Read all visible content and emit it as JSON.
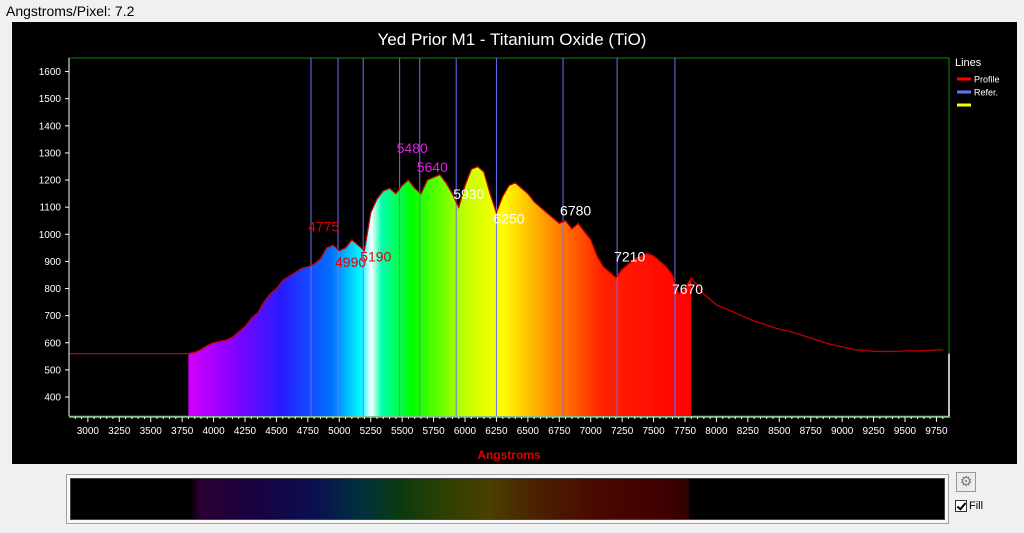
{
  "header": {
    "label": "Angstroms/Pixel: 7.2"
  },
  "controls": {
    "settings_icon": "gear-icon",
    "fill_label": "Fill",
    "fill_checked": true
  },
  "colors": {
    "profile": "#ff0000",
    "reference": "#6f6fff",
    "title": "#ffffff",
    "xlabel": "#e00000",
    "marker_magenta": "#e020e0",
    "marker_red": "#e00000",
    "marker_white": "#ffffff"
  },
  "chart_data": {
    "type": "area",
    "title": "Yed Prior M1 - Titanium Oxide (TiO)",
    "xlabel": "Angstroms",
    "ylabel": "",
    "xlim": [
      2850,
      9850
    ],
    "ylim": [
      330,
      1650
    ],
    "x_ticks": [
      3000,
      3250,
      3500,
      3750,
      4000,
      4250,
      4500,
      4750,
      5000,
      5250,
      5500,
      5750,
      6000,
      6250,
      6500,
      6750,
      7000,
      7250,
      7500,
      7750,
      8000,
      8250,
      8500,
      8750,
      9000,
      9250,
      9500,
      9750
    ],
    "y_ticks": [
      400,
      500,
      600,
      700,
      800,
      900,
      1000,
      1100,
      1200,
      1300,
      1400,
      1500,
      1600
    ],
    "fill_range": [
      3800,
      7800
    ],
    "legend": {
      "title": "Lines",
      "placement": "top-right",
      "entries": [
        {
          "name": "Profile",
          "color": "#ff0000"
        },
        {
          "name": "Refer.",
          "color": "#6f6fff"
        },
        {
          "name": "",
          "color": "#ffff00"
        }
      ]
    },
    "reference_lines": [
      4775,
      4990,
      5190,
      5480,
      5640,
      5930,
      6250,
      6780,
      7210,
      7670
    ],
    "annotations": [
      {
        "text": "4775",
        "x": 4775,
        "y": 1010,
        "color": "red"
      },
      {
        "text": "4990",
        "x": 4990,
        "y": 880,
        "color": "red"
      },
      {
        "text": "5190",
        "x": 5190,
        "y": 900,
        "color": "red"
      },
      {
        "text": "5480",
        "x": 5480,
        "y": 1300,
        "color": "magenta"
      },
      {
        "text": "5640",
        "x": 5640,
        "y": 1230,
        "color": "magenta"
      },
      {
        "text": "5930",
        "x": 5930,
        "y": 1130,
        "color": "white"
      },
      {
        "text": "6250",
        "x": 6250,
        "y": 1040,
        "color": "white"
      },
      {
        "text": "6780",
        "x": 6780,
        "y": 1070,
        "color": "white"
      },
      {
        "text": "7210",
        "x": 7210,
        "y": 900,
        "color": "white"
      },
      {
        "text": "7670",
        "x": 7670,
        "y": 780,
        "color": "white"
      }
    ],
    "series": [
      {
        "x": [
          2850,
          3200,
          3600,
          3800,
          3850,
          3900,
          3950,
          4000,
          4050,
          4100,
          4150,
          4200,
          4250,
          4300,
          4350,
          4400,
          4450,
          4500,
          4550,
          4600,
          4650,
          4700,
          4750,
          4800,
          4850,
          4900,
          4950,
          5000,
          5050,
          5100,
          5150,
          5200,
          5250,
          5300,
          5350,
          5400,
          5450,
          5500,
          5550,
          5600,
          5650,
          5700,
          5750,
          5800,
          5850,
          5900,
          5950,
          6000,
          6050,
          6100,
          6150,
          6200,
          6250,
          6300,
          6350,
          6400,
          6450,
          6500,
          6550,
          6600,
          6650,
          6700,
          6750,
          6800,
          6850,
          6900,
          6950,
          7000,
          7050,
          7100,
          7150,
          7200,
          7250,
          7300,
          7350,
          7400,
          7450,
          7500,
          7550,
          7600,
          7650,
          7700,
          7750,
          7800,
          7900,
          8000,
          8100,
          8200,
          8300,
          8400,
          8500,
          8600,
          8700,
          8800,
          8900,
          9000,
          9100,
          9200,
          9300,
          9400,
          9500,
          9600,
          9700,
          9800
        ],
        "values": [
          560,
          560,
          560,
          560,
          565,
          575,
          590,
          600,
          605,
          610,
          620,
          640,
          660,
          690,
          710,
          750,
          780,
          800,
          830,
          845,
          860,
          875,
          880,
          890,
          910,
          950,
          960,
          940,
          950,
          980,
          960,
          940,
          1080,
          1130,
          1160,
          1170,
          1150,
          1180,
          1200,
          1170,
          1150,
          1200,
          1210,
          1220,
          1190,
          1150,
          1100,
          1180,
          1240,
          1250,
          1230,
          1150,
          1080,
          1140,
          1180,
          1190,
          1170,
          1150,
          1120,
          1100,
          1080,
          1060,
          1040,
          1050,
          1020,
          1040,
          1010,
          980,
          920,
          880,
          860,
          840,
          870,
          890,
          910,
          920,
          930,
          920,
          900,
          880,
          850,
          780,
          800,
          840,
          780,
          740,
          720,
          700,
          680,
          665,
          650,
          640,
          625,
          610,
          595,
          585,
          575,
          570,
          568,
          568,
          570,
          570,
          572,
          575
        ]
      }
    ]
  }
}
